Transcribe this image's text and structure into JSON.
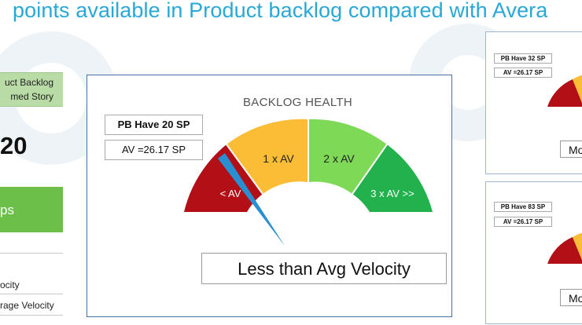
{
  "page": {
    "title": "points available in Product backlog compared with Avera"
  },
  "left_panel": {
    "header_line1": "uct Backlog",
    "header_line2": "med Story",
    "value": "20",
    "green_label": "ps",
    "row1": "ocity",
    "row2": "rage Velocity"
  },
  "main_gauge": {
    "title": "BACKLOG HEALTH",
    "pb_label": "PB Have 20 SP",
    "av_label": "AV =26.17 SP",
    "segments": [
      {
        "label": "< AV",
        "color": "#b20f16"
      },
      {
        "label": "1 x AV",
        "color": "#fbbd36"
      },
      {
        "label": "2 x AV",
        "color": "#7ed957"
      },
      {
        "label": "3 x AV >>",
        "color": "#22b14c"
      }
    ],
    "needle_color": "#2a8fd0",
    "result": "Less than Avg Velocity"
  },
  "right_panels": [
    {
      "pb_label": "PB Have 32 SP",
      "av_label": "AV =26.17 SP",
      "result": "Mo"
    },
    {
      "pb_label": "PB Have 83 SP",
      "av_label": "AV =26.17 SP",
      "result": "Mo"
    }
  ]
}
